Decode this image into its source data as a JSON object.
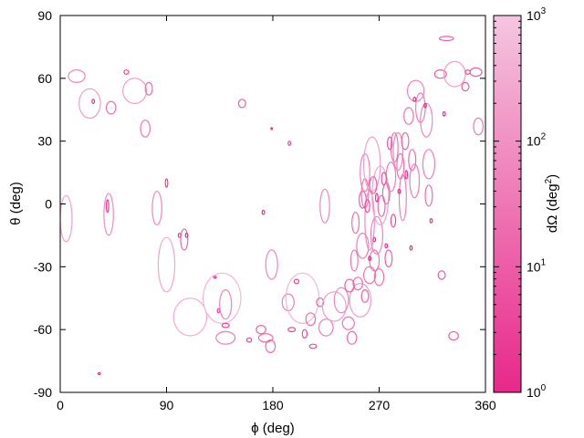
{
  "chart_data": {
    "type": "scatter",
    "xlabel": "ϕ (deg)",
    "ylabel": "θ (deg)",
    "xlim": [
      0,
      360
    ],
    "ylim": [
      -90,
      90
    ],
    "xticks": [
      {
        "value": 0,
        "label": "0"
      },
      {
        "value": 90,
        "label": "90"
      },
      {
        "value": 180,
        "label": "180"
      },
      {
        "value": 270,
        "label": "270"
      },
      {
        "value": 360,
        "label": "360"
      }
    ],
    "yticks": [
      {
        "value": 90,
        "label": "90"
      },
      {
        "value": 60,
        "label": "60"
      },
      {
        "value": 30,
        "label": "30"
      },
      {
        "value": 0,
        "label": "0"
      },
      {
        "value": -30,
        "label": "-30"
      },
      {
        "value": -60,
        "label": "-60"
      },
      {
        "value": -90,
        "label": "-90"
      }
    ],
    "grid": false,
    "colorbar": {
      "label": "dΩ (deg²)",
      "scale": "log",
      "range": [
        1,
        1000
      ],
      "tick_labels": [
        {
          "base": "10",
          "exp": "3",
          "value": 1000
        },
        {
          "base": "10",
          "exp": "2",
          "value": 100
        },
        {
          "base": "10",
          "exp": "1",
          "value": 10
        },
        {
          "base": "10",
          "exp": "0",
          "value": 1
        }
      ],
      "color_low": "#e8288a",
      "color_high": "#f4c6e0"
    },
    "ellipses": [
      {
        "phi": 5,
        "theta": -7,
        "dphi": 5,
        "dtheta": 11,
        "area": 200
      },
      {
        "phi": 14,
        "theta": 61,
        "dphi": 7,
        "dtheta": 3,
        "area": 60
      },
      {
        "phi": 25,
        "theta": 48,
        "dphi": 9,
        "dtheta": 7,
        "area": 150
      },
      {
        "phi": 28,
        "theta": 49,
        "dphi": 1,
        "dtheta": 1,
        "area": 1
      },
      {
        "phi": 33,
        "theta": -81,
        "dphi": 1,
        "dtheta": 0.5,
        "area": 1
      },
      {
        "phi": 43,
        "theta": 46,
        "dphi": 4,
        "dtheta": 3,
        "area": 25
      },
      {
        "phi": 40,
        "theta": -1,
        "dphi": 1,
        "dtheta": 3,
        "area": 3
      },
      {
        "phi": 41,
        "theta": -5,
        "dphi": 4,
        "dtheta": 10,
        "area": 80
      },
      {
        "phi": 56,
        "theta": 63,
        "dphi": 2,
        "dtheta": 1,
        "area": 3
      },
      {
        "phi": 63,
        "theta": 54,
        "dphi": 10,
        "dtheta": 6,
        "area": 150
      },
      {
        "phi": 75,
        "theta": 55,
        "dphi": 3,
        "dtheta": 3,
        "area": 20
      },
      {
        "phi": 72,
        "theta": 36,
        "dphi": 4,
        "dtheta": 4,
        "area": 30
      },
      {
        "phi": 82,
        "theta": -2,
        "dphi": 4,
        "dtheta": 8,
        "area": 60
      },
      {
        "phi": 90,
        "theta": -29,
        "dphi": 7,
        "dtheta": 13,
        "area": 250
      },
      {
        "phi": 90,
        "theta": 10,
        "dphi": 1,
        "dtheta": 2,
        "area": 3
      },
      {
        "phi": 101,
        "theta": -15,
        "dphi": 1,
        "dtheta": 1,
        "area": 2
      },
      {
        "phi": 105,
        "theta": -17,
        "dphi": 3,
        "dtheta": 5,
        "area": 15
      },
      {
        "phi": 107,
        "theta": -15,
        "dphi": 1,
        "dtheta": 1,
        "area": 1
      },
      {
        "phi": 110,
        "theta": -54,
        "dphi": 14,
        "dtheta": 9,
        "area": 300
      },
      {
        "phi": 131,
        "theta": -35,
        "dphi": 1,
        "dtheta": 0.5,
        "area": 1
      },
      {
        "phi": 134,
        "theta": -51,
        "dphi": 1,
        "dtheta": 1,
        "area": 2
      },
      {
        "phi": 137,
        "theta": -45,
        "dphi": 16,
        "dtheta": 12,
        "area": 500
      },
      {
        "phi": 140,
        "theta": -48,
        "dphi": 5,
        "dtheta": 7,
        "area": 60
      },
      {
        "phi": 140,
        "theta": -64,
        "dphi": 8,
        "dtheta": 3,
        "area": 40
      },
      {
        "phi": 140,
        "theta": -58,
        "dphi": 3,
        "dtheta": 1,
        "area": 3
      },
      {
        "phi": 154,
        "theta": 48,
        "dphi": 3,
        "dtheta": 2,
        "area": 8
      },
      {
        "phi": 160,
        "theta": -65,
        "dphi": 2,
        "dtheta": 1,
        "area": 3
      },
      {
        "phi": 170,
        "theta": -60,
        "dphi": 4,
        "dtheta": 2,
        "area": 12
      },
      {
        "phi": 172,
        "theta": -4,
        "dphi": 1,
        "dtheta": 1,
        "area": 1
      },
      {
        "phi": 174,
        "theta": -64,
        "dphi": 6,
        "dtheta": 2,
        "area": 20
      },
      {
        "phi": 178,
        "theta": -68,
        "dphi": 4,
        "dtheta": 3,
        "area": 20
      },
      {
        "phi": 179,
        "theta": 36,
        "dphi": 0.5,
        "dtheta": 0.5,
        "area": 1
      },
      {
        "phi": 179,
        "theta": -29,
        "dphi": 5,
        "dtheta": 7,
        "area": 60
      },
      {
        "phi": 194,
        "theta": 29,
        "dphi": 1,
        "dtheta": 1,
        "area": 2
      },
      {
        "phi": 196,
        "theta": -60,
        "dphi": 3,
        "dtheta": 1,
        "area": 4
      },
      {
        "phi": 193,
        "theta": -47,
        "dphi": 5,
        "dtheta": 4,
        "area": 40
      },
      {
        "phi": 205,
        "theta": -45,
        "dphi": 14,
        "dtheta": 12,
        "area": 500
      },
      {
        "phi": 200,
        "theta": -37,
        "dphi": 2,
        "dtheta": 1,
        "area": 3
      },
      {
        "phi": 207,
        "theta": -62,
        "dphi": 2,
        "dtheta": 2,
        "area": 5
      },
      {
        "phi": 212,
        "theta": -55,
        "dphi": 4,
        "dtheta": 3,
        "area": 20
      },
      {
        "phi": 214,
        "theta": -68,
        "dphi": 3,
        "dtheta": 1,
        "area": 4
      },
      {
        "phi": 224,
        "theta": -1,
        "dphi": 4,
        "dtheta": 8,
        "area": 60
      },
      {
        "phi": 220,
        "theta": -47,
        "dphi": 3,
        "dtheta": 2,
        "area": 10
      },
      {
        "phi": 225,
        "theta": -59,
        "dphi": 6,
        "dtheta": 4,
        "area": 40
      },
      {
        "phi": 232,
        "theta": -49,
        "dphi": 10,
        "dtheta": 7,
        "area": 150
      },
      {
        "phi": 238,
        "theta": -46,
        "dphi": 6,
        "dtheta": 6,
        "area": 60
      },
      {
        "phi": 244,
        "theta": -57,
        "dphi": 5,
        "dtheta": 3,
        "area": 25
      },
      {
        "phi": 247,
        "theta": -64,
        "dphi": 4,
        "dtheta": 3,
        "area": 20
      },
      {
        "phi": 254,
        "theta": -46,
        "dphi": 9,
        "dtheta": 8,
        "area": 150
      },
      {
        "phi": 252,
        "theta": -38,
        "dphi": 4,
        "dtheta": 3,
        "area": 20
      },
      {
        "phi": 249,
        "theta": -27,
        "dphi": 3,
        "dtheta": 5,
        "area": 30
      },
      {
        "phi": 256,
        "theta": -20,
        "dphi": 5,
        "dtheta": 6,
        "area": 40
      },
      {
        "phi": 250,
        "theta": -9,
        "dphi": 3,
        "dtheta": 5,
        "area": 20
      },
      {
        "phi": 258,
        "theta": 5,
        "dphi": 3,
        "dtheta": 7,
        "area": 30
      },
      {
        "phi": 258,
        "theta": 15,
        "dphi": 4,
        "dtheta": 9,
        "area": 50
      },
      {
        "phi": 264,
        "theta": 19,
        "dphi": 7,
        "dtheta": 13,
        "area": 180
      },
      {
        "phi": 262,
        "theta": -8,
        "dphi": 4,
        "dtheta": 14,
        "area": 80
      },
      {
        "phi": 268,
        "theta": -15,
        "dphi": 5,
        "dtheta": 9,
        "area": 60
      },
      {
        "phi": 271,
        "theta": 4,
        "dphi": 7,
        "dtheta": 14,
        "area": 200
      },
      {
        "phi": 265,
        "theta": 9,
        "dphi": 3,
        "dtheta": 4,
        "area": 10
      },
      {
        "phi": 272,
        "theta": -1,
        "dphi": 3,
        "dtheta": 5,
        "area": 15
      },
      {
        "phi": 276,
        "theta": 5,
        "dphi": 3,
        "dtheta": 5,
        "area": 20
      },
      {
        "phi": 266,
        "theta": -27,
        "dphi": 4,
        "dtheta": 5,
        "area": 30
      },
      {
        "phi": 262,
        "theta": -34,
        "dphi": 5,
        "dtheta": 4,
        "area": 30
      },
      {
        "phi": 270,
        "theta": -35,
        "dphi": 4,
        "dtheta": 4,
        "area": 25
      },
      {
        "phi": 280,
        "theta": 13,
        "dphi": 4,
        "dtheta": 7,
        "area": 40
      },
      {
        "phi": 283,
        "theta": 27,
        "dphi": 3,
        "dtheta": 7,
        "area": 30
      },
      {
        "phi": 279,
        "theta": 29,
        "dphi": 2,
        "dtheta": 3,
        "area": 8
      },
      {
        "phi": 286,
        "theta": 25,
        "dphi": 4,
        "dtheta": 9,
        "area": 60
      },
      {
        "phi": 290,
        "theta": 3,
        "dphi": 3,
        "dtheta": 11,
        "area": 50
      },
      {
        "phi": 288,
        "theta": 18,
        "dphi": 3,
        "dtheta": 6,
        "area": 25
      },
      {
        "phi": 292,
        "theta": 30,
        "dphi": 3,
        "dtheta": 4,
        "area": 15
      },
      {
        "phi": 295,
        "theta": 42,
        "dphi": 4,
        "dtheta": 4,
        "area": 25
      },
      {
        "phi": 298,
        "theta": 21,
        "dphi": 3,
        "dtheta": 5,
        "area": 20
      },
      {
        "phi": 300,
        "theta": 11,
        "dphi": 4,
        "dtheta": 8,
        "area": 40
      },
      {
        "phi": 301,
        "theta": 54,
        "dphi": 7,
        "dtheta": 5,
        "area": 60
      },
      {
        "phi": 305,
        "theta": 46,
        "dphi": 4,
        "dtheta": 7,
        "area": 40
      },
      {
        "phi": 310,
        "theta": 40,
        "dphi": 5,
        "dtheta": 8,
        "area": 60
      },
      {
        "phi": 312,
        "theta": 19,
        "dphi": 5,
        "dtheta": 7,
        "area": 40
      },
      {
        "phi": 312,
        "theta": 4,
        "dphi": 3,
        "dtheta": 5,
        "area": 20
      },
      {
        "phi": 309,
        "theta": 47,
        "dphi": 1,
        "dtheta": 1,
        "area": 1
      },
      {
        "phi": 300,
        "theta": 50,
        "dphi": 1,
        "dtheta": 1,
        "area": 1
      },
      {
        "phi": 314,
        "theta": -8,
        "dphi": 1,
        "dtheta": 1,
        "area": 1
      },
      {
        "phi": 322,
        "theta": 62,
        "dphi": 5,
        "dtheta": 2,
        "area": 10
      },
      {
        "phi": 325,
        "theta": 43,
        "dphi": 1,
        "dtheta": 1,
        "area": 1
      },
      {
        "phi": 327,
        "theta": 79,
        "dphi": 6,
        "dtheta": 1,
        "area": 10
      },
      {
        "phi": 323,
        "theta": -34,
        "dphi": 3,
        "dtheta": 2,
        "area": 8
      },
      {
        "phi": 333,
        "theta": -63,
        "dphi": 4,
        "dtheta": 2,
        "area": 10
      },
      {
        "phi": 334,
        "theta": 62,
        "dphi": 9,
        "dtheta": 6,
        "area": 150
      },
      {
        "phi": 343,
        "theta": 56,
        "dphi": 3,
        "dtheta": 2,
        "area": 8
      },
      {
        "phi": 345,
        "theta": 63,
        "dphi": 2,
        "dtheta": 1,
        "area": 3
      },
      {
        "phi": 352,
        "theta": 63,
        "dphi": 5,
        "dtheta": 2,
        "area": 10
      },
      {
        "phi": 354,
        "theta": 37,
        "dphi": 4,
        "dtheta": 4,
        "area": 30
      },
      {
        "phi": 256,
        "theta": 2,
        "dphi": 3,
        "dtheta": 4,
        "area": 12
      },
      {
        "phi": 260,
        "theta": -1,
        "dphi": 2,
        "dtheta": 3,
        "area": 6
      },
      {
        "phi": 274,
        "theta": 12,
        "dphi": 2,
        "dtheta": 3,
        "area": 6
      },
      {
        "phi": 268,
        "theta": 3,
        "dphi": 1,
        "dtheta": 2,
        "area": 2
      },
      {
        "phi": 282,
        "theta": -8,
        "dphi": 2,
        "dtheta": 3,
        "area": 5
      },
      {
        "phi": 278,
        "theta": -26,
        "dphi": 3,
        "dtheta": 4,
        "area": 12
      },
      {
        "phi": 258,
        "theta": -44,
        "dphi": 3,
        "dtheta": 3,
        "area": 10
      },
      {
        "phi": 245,
        "theta": -39,
        "dphi": 4,
        "dtheta": 3,
        "area": 15
      },
      {
        "phi": 266,
        "theta": -17,
        "dphi": 1,
        "dtheta": 1,
        "area": 1
      },
      {
        "phi": 287,
        "theta": 6,
        "dphi": 1,
        "dtheta": 1,
        "area": 1
      },
      {
        "phi": 293,
        "theta": 14,
        "dphi": 1,
        "dtheta": 2,
        "area": 2
      },
      {
        "phi": 276,
        "theta": -20,
        "dphi": 1,
        "dtheta": 1,
        "area": 1
      },
      {
        "phi": 262,
        "theta": -26,
        "dphi": 1,
        "dtheta": 1,
        "area": 1
      },
      {
        "phi": 297,
        "theta": -21,
        "dphi": 1,
        "dtheta": 1,
        "area": 1
      }
    ]
  }
}
